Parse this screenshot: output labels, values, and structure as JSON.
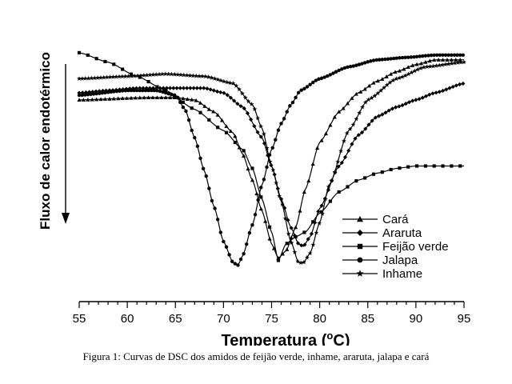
{
  "chart_data": {
    "type": "line",
    "title": "",
    "xlabel": "Temperatura",
    "xlabel_unit_super": "o",
    "xlabel_unit": "C",
    "ylabel": "Fluxo de calor endotérmico",
    "xlim": [
      55,
      95
    ],
    "xticks": [
      55,
      60,
      65,
      70,
      75,
      80,
      85,
      90,
      95
    ],
    "xtick_labels": [
      "55",
      "60",
      "65",
      "70",
      "75",
      "80",
      "85",
      "90",
      "95"
    ],
    "ylim": [
      0,
      100
    ],
    "y_ticks_shown": false,
    "grid": false,
    "legend_position": "lower-right",
    "series": [
      {
        "name": "Cará",
        "marker": "triangle",
        "x": [
          55,
          62,
          65,
          67,
          69,
          71,
          72,
          73,
          74,
          75,
          75.7,
          76.5,
          77.5,
          78.5,
          80,
          82,
          84,
          86,
          88,
          90,
          92,
          95
        ],
        "y": [
          78,
          79,
          79,
          78,
          73,
          64,
          55,
          44,
          31,
          17,
          11,
          14,
          24,
          40,
          60,
          73,
          81,
          86,
          90,
          93,
          95,
          95
        ]
      },
      {
        "name": "Araruta",
        "marker": "diamond",
        "x": [
          55,
          58,
          61,
          65,
          68,
          70,
          72,
          74,
          75,
          76,
          77,
          77.8,
          78.3,
          79,
          80,
          82,
          84,
          86,
          88,
          90,
          92,
          95
        ],
        "y": [
          81,
          82,
          83,
          83,
          83,
          81,
          75,
          62,
          50,
          36,
          24,
          17,
          16,
          20,
          32,
          50,
          63,
          71,
          75,
          78,
          81,
          85
        ]
      },
      {
        "name": "Feijão verde",
        "marker": "square",
        "x": [
          55,
          58,
          61,
          64,
          67,
          70,
          72,
          73,
          74,
          75,
          75.7,
          76.5,
          77.5,
          78.5,
          80,
          82,
          84,
          86,
          88,
          90,
          92,
          95
        ],
        "y": [
          98,
          94,
          88,
          82,
          74,
          65,
          57,
          49,
          36,
          22,
          10,
          17,
          20,
          22,
          30,
          39,
          44,
          47,
          49,
          50,
          50,
          50
        ]
      },
      {
        "name": "Jalapa",
        "marker": "circle",
        "x": [
          55,
          60,
          63,
          65,
          66,
          67,
          68,
          69,
          70,
          71,
          71.5,
          72,
          73,
          74,
          75,
          76,
          77,
          78,
          80,
          83,
          86,
          89,
          92,
          95
        ],
        "y": [
          80,
          82,
          82,
          80,
          74,
          62,
          48,
          33,
          18,
          9,
          8,
          12,
          25,
          42,
          57,
          68,
          76,
          82,
          87,
          92,
          95,
          96,
          97,
          97
        ]
      },
      {
        "name": "Inhame",
        "marker": "star",
        "x": [
          55,
          60,
          64,
          68,
          71,
          73,
          74,
          75,
          76,
          77,
          77.8,
          78.3,
          79,
          80,
          81,
          83,
          85,
          88,
          91,
          95
        ],
        "y": [
          87,
          88,
          89,
          88,
          85,
          76,
          66,
          50,
          35,
          18,
          9,
          9,
          13,
          26,
          42,
          65,
          78,
          87,
          92,
          94
        ]
      }
    ]
  },
  "caption": "Figura 1: Curvas de DSC dos amidos de feijão verde, inhame, araruta, jalapa e cará"
}
